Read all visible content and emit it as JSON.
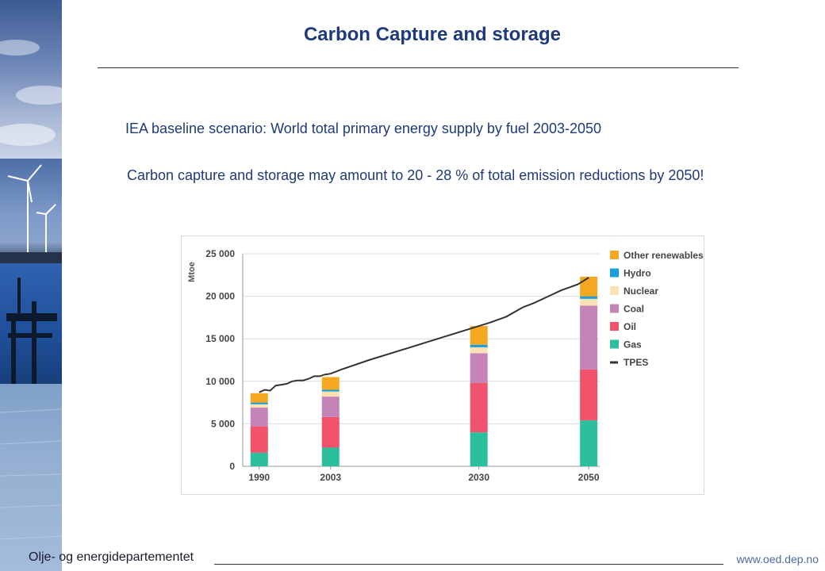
{
  "slide": {
    "title": "Carbon Capture and storage",
    "subtitle": "IEA baseline scenario:  World total primary energy supply by fuel 2003-2050",
    "note": "Carbon capture and storage may amount to 20 - 28 % of total emission reductions by 2050!",
    "footer_left": "Olje- og energidepartementet",
    "footer_right": "www.oed.dep.no"
  },
  "chart_data": {
    "type": "bar",
    "stacked": true,
    "categories": [
      "1990",
      "2003",
      "2030",
      "2050"
    ],
    "x_positions": [
      1990,
      2003,
      2030,
      2050
    ],
    "ylabel": "Mtoe",
    "ylim": [
      0,
      25000
    ],
    "yticks": [
      0,
      5000,
      10000,
      15000,
      20000,
      25000
    ],
    "ytick_labels": [
      "0",
      "5 000",
      "10 000",
      "15 000",
      "20 000",
      "25 000"
    ],
    "grid": true,
    "legend_position": "right",
    "series": [
      {
        "name": "Gas",
        "color": "#2bbf9e",
        "values": [
          1600,
          2200,
          4000,
          5400
        ]
      },
      {
        "name": "Oil",
        "color": "#f0536b",
        "values": [
          3100,
          3600,
          5800,
          6000
        ]
      },
      {
        "name": "Coal",
        "color": "#c484b8",
        "values": [
          2200,
          2400,
          3500,
          7500
        ]
      },
      {
        "name": "Nuclear",
        "color": "#fbe1b3",
        "values": [
          400,
          600,
          700,
          800
        ]
      },
      {
        "name": "Hydro",
        "color": "#1aa0d8",
        "values": [
          200,
          200,
          300,
          300
        ]
      },
      {
        "name": "Other renewables",
        "color": "#f7a823",
        "values": [
          1100,
          1500,
          2200,
          2300
        ]
      }
    ],
    "legend_order": [
      "Other renewables",
      "Hydro",
      "Nuclear",
      "Coal",
      "Oil",
      "Gas",
      "TPES"
    ],
    "tpes": {
      "name": "TPES",
      "color": "#333333",
      "x": [
        1990,
        1991,
        1992,
        1993,
        1994,
        1995,
        1996,
        1997,
        1998,
        1999,
        2000,
        2001,
        2002,
        2003,
        2005,
        2010,
        2015,
        2020,
        2025,
        2030,
        2032,
        2035,
        2038,
        2040,
        2043,
        2045,
        2048,
        2050
      ],
      "values": [
        8700,
        9000,
        8900,
        9500,
        9600,
        9700,
        10000,
        10100,
        10100,
        10300,
        10600,
        10600,
        10800,
        10900,
        11400,
        12500,
        13500,
        14500,
        15500,
        16500,
        16900,
        17600,
        18700,
        19200,
        20100,
        20700,
        21400,
        22200
      ]
    }
  }
}
